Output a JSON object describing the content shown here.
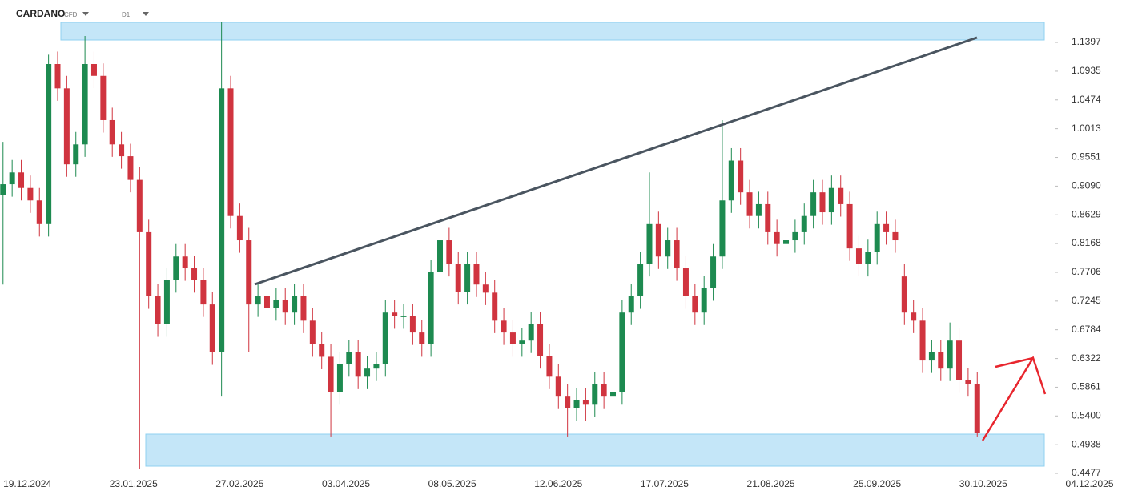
{
  "chart_data": {
    "type": "candlestick",
    "title": "CARDANO",
    "instrument_type": "CFD",
    "timeframe": "D1",
    "up_color": "#1d8a50",
    "down_color": "#d0343f",
    "grid": false,
    "xlim": [
      "10.12.2024",
      "22.11.2025"
    ],
    "xticks": [
      "19.12.2024",
      "23.01.2025",
      "27.02.2025",
      "03.04.2025",
      "08.05.2025",
      "12.06.2025",
      "17.07.2025",
      "21.08.2025",
      "25.09.2025",
      "30.10.2025",
      "04.12.2025"
    ],
    "ylim": [
      0.4426,
      1.2079
    ],
    "yticks": [
      1.1397,
      1.0935,
      1.0474,
      1.0013,
      0.9551,
      {
        "value": 0.909,
        "label": "0.9090"
      },
      0.8629,
      0.8168,
      0.7706,
      0.7245,
      0.6784,
      0.6322,
      0.5861,
      {
        "value": 0.54,
        "label": "0.5400"
      },
      0.4938,
      0.4477
    ],
    "x": [
      "11.12.2024",
      "14.12.2024",
      "17.12.2024",
      "20.12.2024",
      "23.12.2024",
      "26.12.2024",
      "29.12.2024",
      "01.01.2025",
      "04.01.2025",
      "07.01.2025",
      "10.01.2025",
      "13.01.2025",
      "16.01.2025",
      "19.01.2025",
      "22.01.2025",
      "25.01.2025",
      "28.01.2025",
      "31.01.2025",
      "03.02.2025",
      "06.02.2025",
      "09.02.2025",
      "12.02.2025",
      "15.02.2025",
      "18.02.2025",
      "21.02.2025",
      "24.02.2025",
      "27.02.2025",
      "02.03.2025",
      "05.03.2025",
      "08.03.2025",
      "11.03.2025",
      "14.03.2025",
      "17.03.2025",
      "20.03.2025",
      "23.03.2025",
      "26.03.2025",
      "29.03.2025",
      "01.04.2025",
      "04.04.2025",
      "07.04.2025",
      "10.04.2025",
      "13.04.2025",
      "16.04.2025",
      "19.04.2025",
      "22.04.2025",
      "25.04.2025",
      "28.04.2025",
      "01.05.2025",
      "04.05.2025",
      "07.05.2025",
      "10.05.2025",
      "13.05.2025",
      "16.05.2025",
      "19.05.2025",
      "22.05.2025",
      "25.05.2025",
      "28.05.2025",
      "31.05.2025",
      "03.06.2025",
      "06.06.2025",
      "09.06.2025",
      "12.06.2025",
      "15.06.2025",
      "18.06.2025",
      "21.06.2025",
      "24.06.2025",
      "27.06.2025",
      "30.06.2025",
      "03.07.2025",
      "06.07.2025",
      "09.07.2025",
      "12.07.2025",
      "15.07.2025",
      "18.07.2025",
      "21.07.2025",
      "24.07.2025",
      "27.07.2025",
      "30.07.2025",
      "02.08.2025",
      "05.08.2025",
      "08.08.2025",
      "11.08.2025",
      "14.08.2025",
      "17.08.2025",
      "20.08.2025",
      "23.08.2025",
      "26.08.2025",
      "29.08.2025",
      "01.09.2025",
      "04.09.2025",
      "07.09.2025",
      "10.09.2025",
      "13.09.2025",
      "16.09.2025",
      "19.09.2025",
      "22.09.2025",
      "25.09.2025",
      "28.09.2025",
      "01.10.2025",
      "04.10.2025",
      "07.10.2025",
      "10.10.2025",
      "13.10.2025",
      "16.10.2025",
      "19.10.2025",
      "22.10.2025",
      "25.10.2025",
      "28.10.2025"
    ],
    "open": [
      0.895,
      0.912,
      0.931,
      0.906,
      0.886,
      0.848,
      1.105,
      1.066,
      0.944,
      0.976,
      1.105,
      1.086,
      1.015,
      0.976,
      0.957,
      0.919,
      0.835,
      0.732,
      0.687,
      0.758,
      0.796,
      0.777,
      0.758,
      0.719,
      0.642,
      1.066,
      0.861,
      0.822,
      0.719,
      0.732,
      0.713,
      0.726,
      0.706,
      0.732,
      0.693,
      0.655,
      0.635,
      0.578,
      0.623,
      0.642,
      0.603,
      0.616,
      0.623,
      0.706,
      0.7,
      0.7,
      0.674,
      0.655,
      0.771,
      0.822,
      0.784,
      0.739,
      0.784,
      0.751,
      0.738,
      0.693,
      0.674,
      0.655,
      0.661,
      0.687,
      0.636,
      0.603,
      0.571,
      0.552,
      0.565,
      0.558,
      0.591,
      0.571,
      0.578,
      0.706,
      0.732,
      0.784,
      0.848,
      0.796,
      0.822,
      0.777,
      0.732,
      0.706,
      0.745,
      0.796,
      0.886,
      0.95,
      0.899,
      0.861,
      0.88,
      0.835,
      0.816,
      0.822,
      0.835,
      0.861,
      0.899,
      0.867,
      0.906,
      0.88,
      0.809,
      0.784,
      0.803,
      0.848,
      0.835,
      0.764,
      0.706,
      0.693,
      0.629,
      0.642,
      0.616,
      0.661,
      0.597,
      0.591
    ],
    "high": [
      0.98,
      0.951,
      0.951,
      0.926,
      0.906,
      1.12,
      1.125,
      1.086,
      0.996,
      1.15,
      1.125,
      1.106,
      1.035,
      0.996,
      0.977,
      0.939,
      0.855,
      0.752,
      0.778,
      0.816,
      0.816,
      0.797,
      0.778,
      0.739,
      1.172,
      1.086,
      0.881,
      0.842,
      0.752,
      0.752,
      0.746,
      0.746,
      0.752,
      0.752,
      0.713,
      0.675,
      0.655,
      0.643,
      0.662,
      0.662,
      0.636,
      0.643,
      0.726,
      0.726,
      0.72,
      0.72,
      0.694,
      0.791,
      0.854,
      0.842,
      0.804,
      0.804,
      0.804,
      0.771,
      0.758,
      0.713,
      0.694,
      0.681,
      0.707,
      0.707,
      0.656,
      0.623,
      0.591,
      0.585,
      0.585,
      0.611,
      0.611,
      0.598,
      0.726,
      0.752,
      0.804,
      0.931,
      0.868,
      0.842,
      0.842,
      0.797,
      0.752,
      0.765,
      0.816,
      1.015,
      0.97,
      0.97,
      0.919,
      0.9,
      0.9,
      0.855,
      0.842,
      0.855,
      0.881,
      0.919,
      0.919,
      0.926,
      0.926,
      0.9,
      0.829,
      0.823,
      0.868,
      0.868,
      0.855,
      0.784,
      0.726,
      0.713,
      0.662,
      0.662,
      0.69,
      0.681,
      0.617,
      0.611
    ],
    "low": [
      0.751,
      0.892,
      0.886,
      0.866,
      0.828,
      0.828,
      1.046,
      0.924,
      0.924,
      0.956,
      1.066,
      0.995,
      0.956,
      0.937,
      0.899,
      0.455,
      0.712,
      0.667,
      0.667,
      0.738,
      0.757,
      0.738,
      0.699,
      0.622,
      0.571,
      0.841,
      0.802,
      0.642,
      0.699,
      0.693,
      0.693,
      0.686,
      0.686,
      0.673,
      0.635,
      0.615,
      0.507,
      0.558,
      0.603,
      0.583,
      0.583,
      0.596,
      0.603,
      0.68,
      0.68,
      0.654,
      0.635,
      0.635,
      0.751,
      0.764,
      0.719,
      0.719,
      0.731,
      0.718,
      0.673,
      0.654,
      0.635,
      0.635,
      0.641,
      0.616,
      0.583,
      0.551,
      0.507,
      0.532,
      0.532,
      0.538,
      0.551,
      0.551,
      0.558,
      0.686,
      0.712,
      0.764,
      0.776,
      0.776,
      0.757,
      0.712,
      0.686,
      0.686,
      0.725,
      0.776,
      0.866,
      0.879,
      0.841,
      0.841,
      0.815,
      0.796,
      0.796,
      0.802,
      0.815,
      0.841,
      0.847,
      0.847,
      0.86,
      0.789,
      0.764,
      0.764,
      0.783,
      0.815,
      0.802,
      0.686,
      0.673,
      0.609,
      0.609,
      0.596,
      0.596,
      0.577,
      0.571,
      0.507
    ],
    "close": [
      0.912,
      0.931,
      0.906,
      0.886,
      0.848,
      1.105,
      1.066,
      0.944,
      0.976,
      1.105,
      1.086,
      1.015,
      0.976,
      0.957,
      0.919,
      0.835,
      0.732,
      0.687,
      0.758,
      0.796,
      0.777,
      0.758,
      0.719,
      0.642,
      1.066,
      0.861,
      0.822,
      0.719,
      0.732,
      0.713,
      0.726,
      0.706,
      0.732,
      0.693,
      0.655,
      0.635,
      0.578,
      0.623,
      0.642,
      0.603,
      0.616,
      0.623,
      0.706,
      0.7,
      0.7,
      0.674,
      0.655,
      0.771,
      0.822,
      0.784,
      0.739,
      0.784,
      0.751,
      0.738,
      0.693,
      0.674,
      0.655,
      0.661,
      0.687,
      0.636,
      0.603,
      0.571,
      0.552,
      0.565,
      0.558,
      0.591,
      0.571,
      0.578,
      0.706,
      0.732,
      0.784,
      0.848,
      0.796,
      0.822,
      0.777,
      0.732,
      0.706,
      0.745,
      0.796,
      0.886,
      0.95,
      0.899,
      0.861,
      0.88,
      0.835,
      0.816,
      0.822,
      0.835,
      0.861,
      0.899,
      0.867,
      0.906,
      0.88,
      0.809,
      0.784,
      0.803,
      0.848,
      0.835,
      0.822,
      0.706,
      0.693,
      0.629,
      0.642,
      0.616,
      0.661,
      0.597,
      0.591,
      0.513
    ]
  }
}
